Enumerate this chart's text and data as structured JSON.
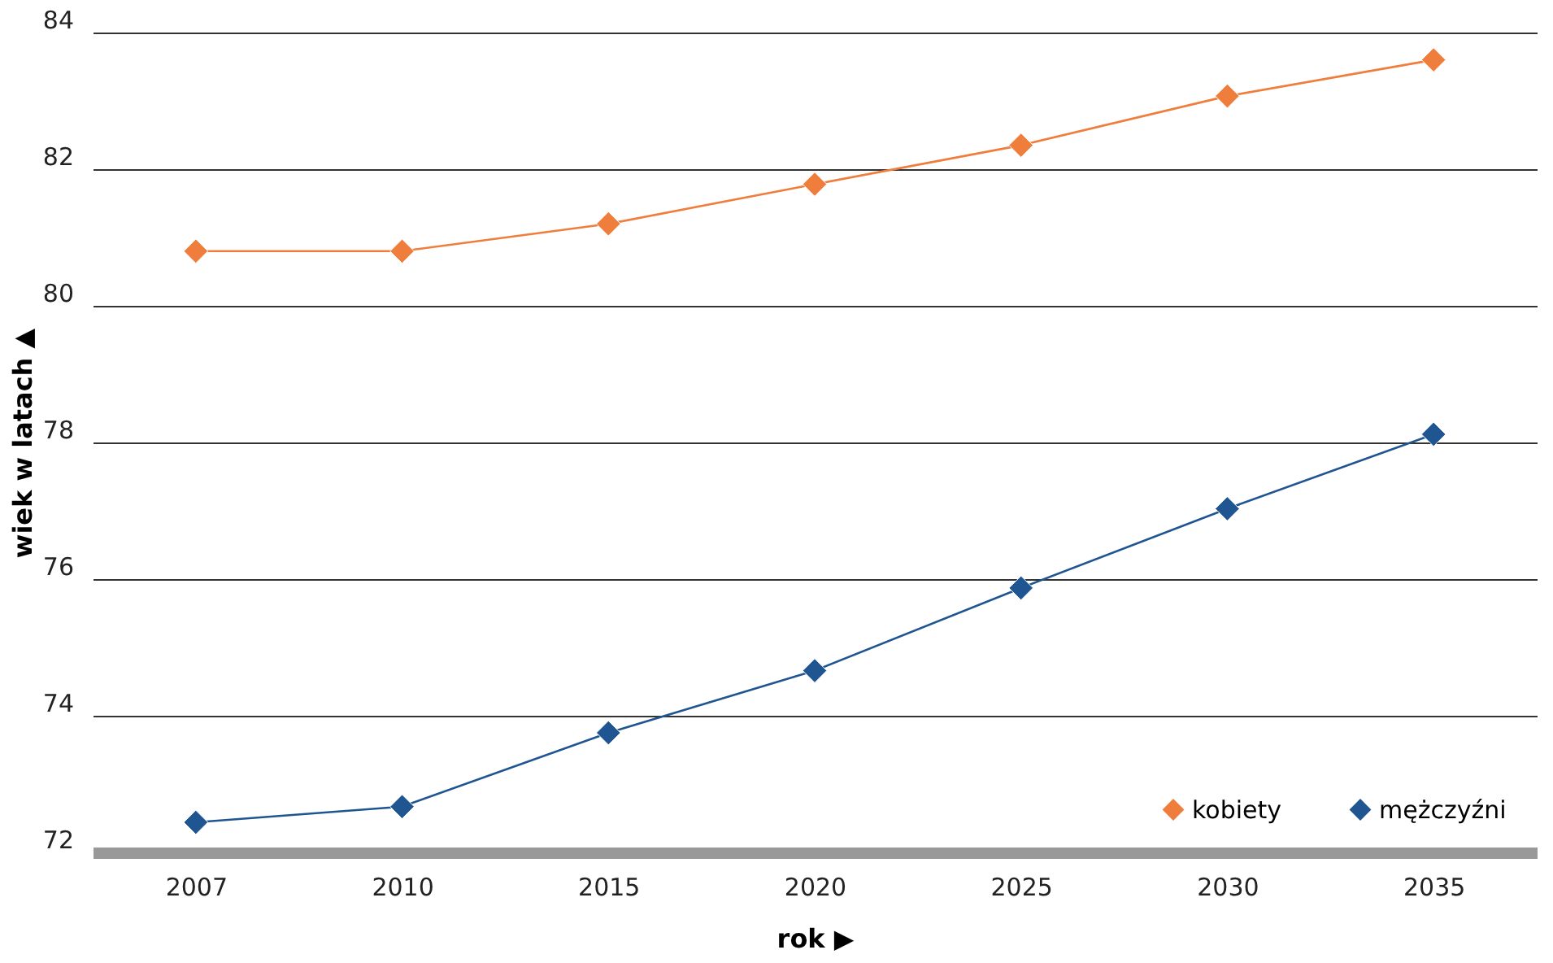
{
  "chart_data": {
    "type": "line",
    "xlabel": "rok ▶",
    "ylabel": "wiek w latach ▲",
    "categories": [
      "2007",
      "2010",
      "2015",
      "2020",
      "2025",
      "2030",
      "2035"
    ],
    "series": [
      {
        "name": "kobiety",
        "color": "#ef7d3c",
        "values": [
          80.8,
          80.8,
          81.2,
          81.78,
          82.35,
          83.07,
          83.6
        ]
      },
      {
        "name": "mężczyźni",
        "color": "#1f5590",
        "values": [
          72.44,
          72.67,
          73.75,
          74.66,
          75.87,
          77.03,
          78.12
        ]
      }
    ],
    "ylim": [
      72,
      84
    ],
    "yticks": [
      72,
      74,
      76,
      78,
      80,
      82,
      84
    ],
    "grid": "y",
    "legend": "bottom right",
    "marker": "diamond",
    "line_style": "solid"
  }
}
